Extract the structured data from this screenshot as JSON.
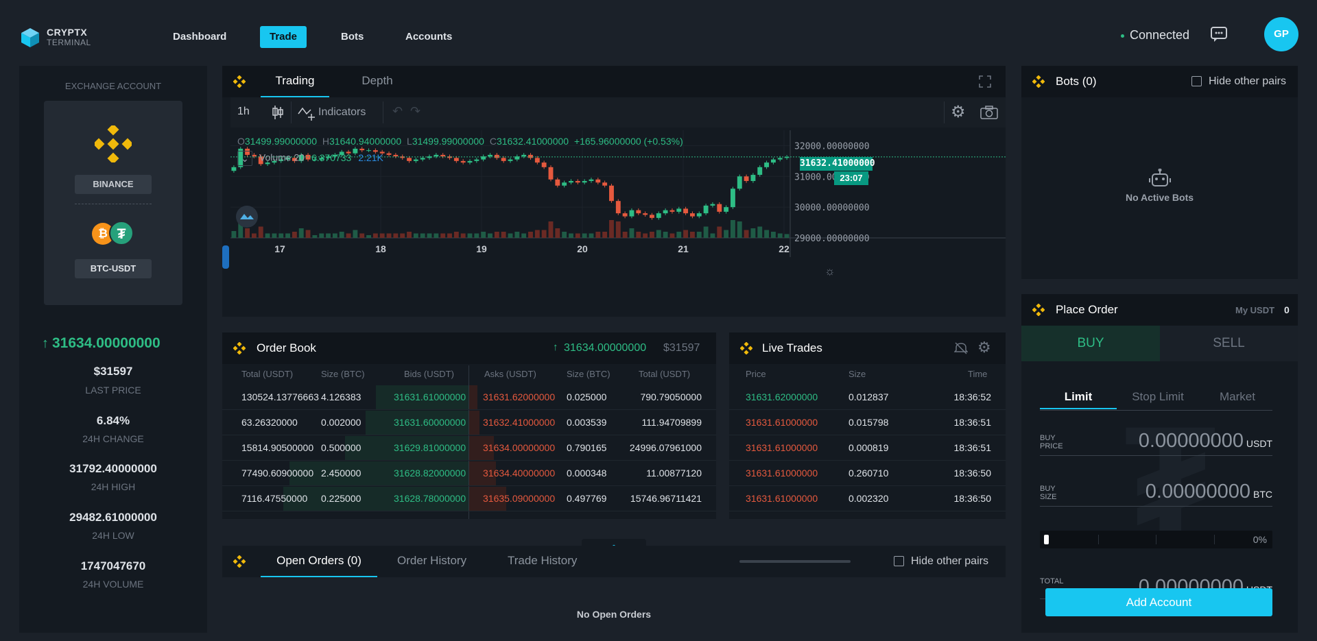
{
  "brand": {
    "name": "CRYPTX",
    "sub": "TERMINAL"
  },
  "nav": {
    "items": [
      "Dashboard",
      "Trade",
      "Bots",
      "Accounts"
    ],
    "active": "Trade"
  },
  "status": {
    "text": "Connected",
    "avatar": "GP",
    "status_color": "#2ebd85"
  },
  "colors": {
    "accent": "#18c6f0",
    "up": "#2ebd85",
    "down": "#e5593e",
    "brand": "#f0b90b"
  },
  "sidebar": {
    "title": "EXCHANGE ACCOUNT",
    "exchange": "BINANCE",
    "pair": "BTC-USDT",
    "price": "31634.00000000",
    "usd": "$31597",
    "stats": [
      {
        "value": "6.84%",
        "label": "24H CHANGE"
      },
      {
        "value": "31792.40000000",
        "label": "24H HIGH"
      },
      {
        "value": "29482.61000000",
        "label": "24H LOW"
      },
      {
        "value": "1747047670",
        "label": "24H VOLUME"
      }
    ],
    "last_price_label": "LAST PRICE"
  },
  "chart": {
    "tabs": [
      "Trading",
      "Depth"
    ],
    "interval": "1h",
    "indicators": "Indicators",
    "ohlc": {
      "o": "31499.99000000",
      "h": "31640.94000000",
      "l": "31499.99000000",
      "c": "31632.41000000",
      "chg": "+165.96000000 (+0.53%)"
    },
    "volume_label": "Volume 20",
    "volume_v1": "6.370733",
    "volume_v2": "2.21K",
    "price_tag": "31632.41000000",
    "time_tag": "23:07"
  },
  "chart_data": {
    "type": "candlestick",
    "x_ticks": [
      "17",
      "18",
      "19",
      "20",
      "21",
      "22"
    ],
    "y_ticks": [
      "32000.00000000",
      "31000.00000000",
      "30000.00000000",
      "29000.00000000"
    ],
    "ylim": [
      29000,
      32500
    ],
    "close": [
      31300,
      31900,
      31700,
      31650,
      31400,
      31450,
      31500,
      31550,
      31600,
      31500,
      31700,
      31550,
      31550,
      31600,
      31650,
      31700,
      31800,
      31750,
      31900,
      31850,
      31850,
      31800,
      31750,
      31700,
      31650,
      31600,
      31500,
      31550,
      31600,
      31650,
      31700,
      31650,
      31600,
      31500,
      31450,
      31500,
      31550,
      31650,
      31700,
      31600,
      31500,
      31550,
      31650,
      31700,
      31600,
      31450,
      31300,
      30900,
      30700,
      30800,
      30850,
      30800,
      30850,
      30900,
      30800,
      30700,
      30200,
      29800,
      29700,
      29900,
      29800,
      29750,
      29650,
      29800,
      29900,
      29850,
      29950,
      29800,
      29700,
      29800,
      30050,
      30100,
      29850,
      30000,
      30600,
      31000,
      30850,
      31050,
      31300,
      31450,
      31550,
      31600,
      31632
    ]
  },
  "orderbook": {
    "title": "Order Book",
    "price": "31634.00000000",
    "usd": "$31597",
    "headers": [
      "Total (USDT)",
      "Size (BTC)",
      "Bids (USDT)",
      "Asks (USDT)",
      "Size (BTC)",
      "Total (USDT)"
    ],
    "rows": [
      {
        "bt": "130524.13776663",
        "bs": "4.126383",
        "bp": "31631.61000000",
        "ap": "31631.62000000",
        "as": "0.025000",
        "at": "790.79050000",
        "bd": 0.45,
        "ad": 0.04
      },
      {
        "bt": "63.26320000",
        "bs": "0.002000",
        "bp": "31631.60000000",
        "ap": "31632.41000000",
        "as": "0.003539",
        "at": "111.94709899",
        "bd": 0.5,
        "ad": 0.05
      },
      {
        "bt": "15814.90500000",
        "bs": "0.500000",
        "bp": "31629.81000000",
        "ap": "31634.00000000",
        "as": "0.790165",
        "at": "24996.07961000",
        "bd": 0.6,
        "ad": 0.12
      },
      {
        "bt": "77490.60900000",
        "bs": "2.450000",
        "bp": "31628.82000000",
        "ap": "31634.40000000",
        "as": "0.000348",
        "at": "11.00877120",
        "bd": 0.87,
        "ad": 0.13
      },
      {
        "bt": "7116.47550000",
        "bs": "0.225000",
        "bp": "31628.78000000",
        "ap": "31635.09000000",
        "as": "0.497769",
        "at": "15746.96711421",
        "bd": 0.9,
        "ad": 0.18
      }
    ]
  },
  "trades": {
    "title": "Live Trades",
    "headers": [
      "Price",
      "Size",
      "Time"
    ],
    "rows": [
      {
        "p": "31631.62000000",
        "s": "0.012837",
        "t": "18:36:52",
        "side": "buy"
      },
      {
        "p": "31631.61000000",
        "s": "0.015798",
        "t": "18:36:51",
        "side": "sell"
      },
      {
        "p": "31631.61000000",
        "s": "0.000819",
        "t": "18:36:51",
        "side": "sell"
      },
      {
        "p": "31631.61000000",
        "s": "0.260710",
        "t": "18:36:50",
        "side": "sell"
      },
      {
        "p": "31631.61000000",
        "s": "0.002320",
        "t": "18:36:50",
        "side": "sell"
      }
    ]
  },
  "orders": {
    "tabs": [
      "Open Orders (0)",
      "Order History",
      "Trade History"
    ],
    "hide": "Hide other pairs",
    "empty": "No Open Orders"
  },
  "bots": {
    "title": "Bots (0)",
    "hide": "Hide other pairs",
    "empty": "No Active Bots"
  },
  "place": {
    "title": "Place Order",
    "my_label": "My USDT",
    "my_value": "0",
    "buy": "BUY",
    "sell": "SELL",
    "types": [
      "Limit",
      "Stop Limit",
      "Market"
    ],
    "price_label_1": "BUY",
    "price_label_2": "PRICE",
    "price_value": "0.00000000",
    "price_unit": "USDT",
    "size_label_1": "BUY",
    "size_label_2": "SIZE",
    "size_value": "0.00000000",
    "size_unit": "BTC",
    "pct": "0%",
    "pct_value": 0,
    "total_label": "TOTAL",
    "total_value": "0.00000000",
    "total_unit": "USDT",
    "add": "Add Account"
  }
}
